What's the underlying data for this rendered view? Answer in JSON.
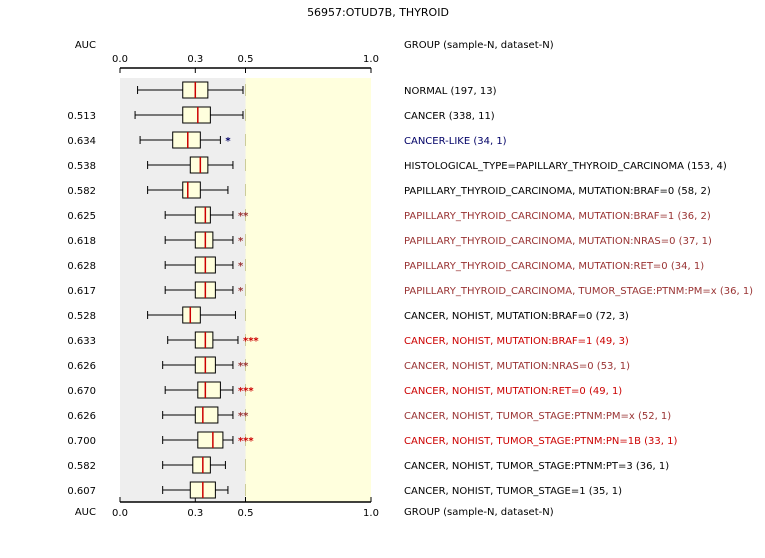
{
  "title": "56957:OTUD7B, THYROID",
  "header": {
    "auc_label": "AUC",
    "group_label": "GROUP (sample-N, dataset-N)"
  },
  "colors": {
    "plot_background_left": "#eeeeee",
    "plot_background_right": "#ffffdd",
    "box_fill": "#ffffdd",
    "median_line": "#cc0000",
    "label_black": "#000000",
    "label_blue": "#000066",
    "label_darkred": "#993333",
    "label_red": "#cc0000",
    "reference_line": "#cccc99"
  },
  "chart_data": {
    "type": "boxplot",
    "title": "56957:OTUD7B, THYROID",
    "xlim": [
      0,
      1
    ],
    "x_ticks": [
      0.0,
      0.3,
      0.5,
      1.0
    ],
    "x_tick_labels": [
      "0.0",
      "0.3",
      "0.5",
      "1.0"
    ],
    "reference_x": 0.5,
    "rows": [
      {
        "label": "NORMAL (197, 13)",
        "auc": "",
        "stars": "",
        "color": "label_black",
        "whisker_low": 0.07,
        "q1": 0.25,
        "median": 0.3,
        "q3": 0.35,
        "whisker_high": 0.49
      },
      {
        "label": "CANCER (338, 11)",
        "auc": "0.513",
        "stars": "",
        "color": "label_black",
        "whisker_low": 0.06,
        "q1": 0.25,
        "median": 0.31,
        "q3": 0.36,
        "whisker_high": 0.49
      },
      {
        "label": "CANCER-LIKE (34, 1)",
        "auc": "0.634",
        "stars": "*",
        "color": "label_blue",
        "whisker_low": 0.08,
        "q1": 0.21,
        "median": 0.27,
        "q3": 0.32,
        "whisker_high": 0.4
      },
      {
        "label": "HISTOLOGICAL_TYPE=PAPILLARY_THYROID_CARCINOMA (153, 4)",
        "auc": "0.538",
        "stars": "",
        "color": "label_black",
        "whisker_low": 0.11,
        "q1": 0.28,
        "median": 0.32,
        "q3": 0.35,
        "whisker_high": 0.45
      },
      {
        "label": "PAPILLARY_THYROID_CARCINOMA, MUTATION:BRAF=0 (58, 2)",
        "auc": "0.582",
        "stars": "",
        "color": "label_black",
        "whisker_low": 0.11,
        "q1": 0.25,
        "median": 0.27,
        "q3": 0.32,
        "whisker_high": 0.43
      },
      {
        "label": "PAPILLARY_THYROID_CARCINOMA, MUTATION:BRAF=1 (36, 2)",
        "auc": "0.625",
        "stars": "**",
        "color": "label_darkred",
        "whisker_low": 0.18,
        "q1": 0.3,
        "median": 0.34,
        "q3": 0.36,
        "whisker_high": 0.45
      },
      {
        "label": "PAPILLARY_THYROID_CARCINOMA, MUTATION:NRAS=0 (37, 1)",
        "auc": "0.618",
        "stars": "*",
        "color": "label_darkred",
        "whisker_low": 0.18,
        "q1": 0.3,
        "median": 0.34,
        "q3": 0.37,
        "whisker_high": 0.45
      },
      {
        "label": "PAPILLARY_THYROID_CARCINOMA, MUTATION:RET=0 (34, 1)",
        "auc": "0.628",
        "stars": "*",
        "color": "label_darkred",
        "whisker_low": 0.18,
        "q1": 0.3,
        "median": 0.34,
        "q3": 0.38,
        "whisker_high": 0.45
      },
      {
        "label": "PAPILLARY_THYROID_CARCINOMA, TUMOR_STAGE:PTNM:PM=x (36, 1)",
        "auc": "0.617",
        "stars": "*",
        "color": "label_darkred",
        "whisker_low": 0.18,
        "q1": 0.3,
        "median": 0.34,
        "q3": 0.38,
        "whisker_high": 0.45
      },
      {
        "label": "CANCER, NOHIST, MUTATION:BRAF=0 (72, 3)",
        "auc": "0.528",
        "stars": "",
        "color": "label_black",
        "whisker_low": 0.11,
        "q1": 0.25,
        "median": 0.28,
        "q3": 0.32,
        "whisker_high": 0.46
      },
      {
        "label": "CANCER, NOHIST, MUTATION:BRAF=1 (49, 3)",
        "auc": "0.633",
        "stars": "***",
        "color": "label_red",
        "whisker_low": 0.19,
        "q1": 0.3,
        "median": 0.34,
        "q3": 0.37,
        "whisker_high": 0.47
      },
      {
        "label": "CANCER, NOHIST, MUTATION:NRAS=0 (53, 1)",
        "auc": "0.626",
        "stars": "**",
        "color": "label_darkred",
        "whisker_low": 0.17,
        "q1": 0.3,
        "median": 0.34,
        "q3": 0.38,
        "whisker_high": 0.45
      },
      {
        "label": "CANCER, NOHIST, MUTATION:RET=0 (49, 1)",
        "auc": "0.670",
        "stars": "***",
        "color": "label_red",
        "whisker_low": 0.18,
        "q1": 0.31,
        "median": 0.34,
        "q3": 0.4,
        "whisker_high": 0.45
      },
      {
        "label": "CANCER, NOHIST, TUMOR_STAGE:PTNM:PM=x (52, 1)",
        "auc": "0.626",
        "stars": "**",
        "color": "label_darkred",
        "whisker_low": 0.17,
        "q1": 0.3,
        "median": 0.33,
        "q3": 0.39,
        "whisker_high": 0.45
      },
      {
        "label": "CANCER, NOHIST, TUMOR_STAGE:PTNM:PN=1B (33, 1)",
        "auc": "0.700",
        "stars": "***",
        "color": "label_red",
        "whisker_low": 0.17,
        "q1": 0.31,
        "median": 0.37,
        "q3": 0.41,
        "whisker_high": 0.45
      },
      {
        "label": "CANCER, NOHIST, TUMOR_STAGE:PTNM:PT=3 (36, 1)",
        "auc": "0.582",
        "stars": "",
        "color": "label_black",
        "whisker_low": 0.17,
        "q1": 0.29,
        "median": 0.33,
        "q3": 0.36,
        "whisker_high": 0.42
      },
      {
        "label": "CANCER, NOHIST, TUMOR_STAGE=1 (35, 1)",
        "auc": "0.607",
        "stars": "",
        "color": "label_black",
        "whisker_low": 0.17,
        "q1": 0.28,
        "median": 0.33,
        "q3": 0.38,
        "whisker_high": 0.43
      }
    ]
  }
}
